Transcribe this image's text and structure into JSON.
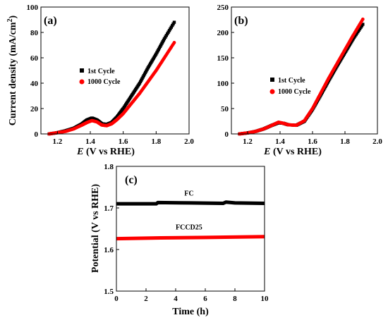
{
  "chart_data": [
    {
      "panel": "(a)",
      "type": "line",
      "xlabel_italic": "E",
      "xlabel_rest": " (V vs RHE)",
      "ylabel": "Current density (mA/cm",
      "ylabel_sup": "2",
      "ylabel_close": ")",
      "xlim": [
        1.1,
        2.0
      ],
      "ylim": [
        0,
        100
      ],
      "xticks": [
        1.2,
        1.4,
        1.6,
        1.8,
        2.0
      ],
      "xtick_labels": [
        "1.2",
        "1.4",
        "1.6",
        "1.8",
        "2.0"
      ],
      "yticks": [
        0,
        20,
        40,
        60,
        80,
        100
      ],
      "ytick_labels": [
        "0",
        "20",
        "40",
        "60",
        "80",
        "100"
      ],
      "legend_position": "middle-left",
      "series": [
        {
          "name": "1st Cycle",
          "color": "#000000",
          "marker": "square",
          "points": [
            [
              1.15,
              0
            ],
            [
              1.2,
              1
            ],
            [
              1.25,
              2.5
            ],
            [
              1.3,
              4.5
            ],
            [
              1.35,
              8
            ],
            [
              1.38,
              11
            ],
            [
              1.41,
              12.5
            ],
            [
              1.44,
              11
            ],
            [
              1.47,
              8
            ],
            [
              1.5,
              7.5
            ],
            [
              1.53,
              9
            ],
            [
              1.56,
              13
            ],
            [
              1.6,
              20
            ],
            [
              1.65,
              30
            ],
            [
              1.7,
              40
            ],
            [
              1.75,
              52
            ],
            [
              1.8,
              63
            ],
            [
              1.85,
              75
            ],
            [
              1.91,
              88
            ]
          ]
        },
        {
          "name": "1000 Cycle",
          "color": "#ff0000",
          "marker": "circle",
          "points": [
            [
              1.15,
              0
            ],
            [
              1.2,
              1
            ],
            [
              1.25,
              2
            ],
            [
              1.3,
              4
            ],
            [
              1.35,
              7
            ],
            [
              1.38,
              9
            ],
            [
              1.41,
              10.5
            ],
            [
              1.44,
              9.5
            ],
            [
              1.47,
              7
            ],
            [
              1.5,
              6.5
            ],
            [
              1.53,
              8
            ],
            [
              1.56,
              11
            ],
            [
              1.6,
              16
            ],
            [
              1.65,
              24
            ],
            [
              1.7,
              32
            ],
            [
              1.75,
              41
            ],
            [
              1.8,
              50
            ],
            [
              1.85,
              60
            ],
            [
              1.91,
              72
            ]
          ]
        }
      ]
    },
    {
      "panel": "(b)",
      "type": "line",
      "xlabel_italic": "E",
      "xlabel_rest": " (V vs RHE)",
      "xlim": [
        1.1,
        2.0
      ],
      "ylim": [
        0,
        250
      ],
      "xticks": [
        1.2,
        1.4,
        1.6,
        1.8,
        2.0
      ],
      "xtick_labels": [
        "1.2",
        "1.4",
        "1.6",
        "1.8",
        "2.0"
      ],
      "yticks": [
        0,
        50,
        100,
        150,
        200,
        250
      ],
      "ytick_labels": [
        "0",
        "50",
        "100",
        "150",
        "200",
        "250"
      ],
      "legend_position": "middle-left",
      "series": [
        {
          "name": "1st Cycle",
          "color": "#000000",
          "marker": "square",
          "points": [
            [
              1.15,
              0
            ],
            [
              1.2,
              2
            ],
            [
              1.25,
              5
            ],
            [
              1.3,
              10
            ],
            [
              1.35,
              17
            ],
            [
              1.39,
              22
            ],
            [
              1.42,
              21
            ],
            [
              1.45,
              18
            ],
            [
              1.5,
              17
            ],
            [
              1.55,
              25
            ],
            [
              1.6,
              48
            ],
            [
              1.65,
              76
            ],
            [
              1.7,
              105
            ],
            [
              1.75,
              133
            ],
            [
              1.8,
              160
            ],
            [
              1.85,
              187
            ],
            [
              1.91,
              216
            ]
          ]
        },
        {
          "name": "1000 Cycle",
          "color": "#ff0000",
          "marker": "circle",
          "points": [
            [
              1.15,
              0
            ],
            [
              1.2,
              2
            ],
            [
              1.25,
              5
            ],
            [
              1.3,
              10
            ],
            [
              1.35,
              17
            ],
            [
              1.39,
              23
            ],
            [
              1.42,
              21
            ],
            [
              1.45,
              18
            ],
            [
              1.5,
              17
            ],
            [
              1.55,
              26
            ],
            [
              1.6,
              50
            ],
            [
              1.65,
              80
            ],
            [
              1.7,
              110
            ],
            [
              1.75,
              138
            ],
            [
              1.8,
              166
            ],
            [
              1.85,
              194
            ],
            [
              1.91,
              226
            ]
          ]
        }
      ]
    },
    {
      "panel": "(c)",
      "type": "line",
      "xlabel": "Time (h)",
      "ylabel": "Potential (V vs RHE)",
      "xlim": [
        0,
        10
      ],
      "ylim": [
        1.5,
        1.8
      ],
      "xticks": [
        0,
        2,
        4,
        6,
        8,
        10
      ],
      "xtick_labels": [
        "0",
        "2",
        "4",
        "6",
        "8",
        "10"
      ],
      "yticks": [
        1.5,
        1.6,
        1.7,
        1.8
      ],
      "ytick_labels": [
        "1.5",
        "1.6",
        "1.7",
        "1.8"
      ],
      "series": [
        {
          "name": "FC",
          "color": "#000000",
          "points": [
            [
              0,
              1.71
            ],
            [
              2.7,
              1.71
            ],
            [
              2.8,
              1.713
            ],
            [
              5,
              1.712
            ],
            [
              7.2,
              1.711
            ],
            [
              7.4,
              1.714
            ],
            [
              8,
              1.712
            ],
            [
              10,
              1.711
            ]
          ]
        },
        {
          "name": "FCCD25",
          "color": "#ff0000",
          "points": [
            [
              0,
              1.626
            ],
            [
              3,
              1.628
            ],
            [
              6,
              1.629
            ],
            [
              10,
              1.631
            ]
          ]
        }
      ],
      "annotations": [
        {
          "text": "FC",
          "x": 4.9,
          "y": 1.73
        },
        {
          "text": "FCCD25",
          "x": 4.9,
          "y": 1.648
        }
      ]
    }
  ]
}
